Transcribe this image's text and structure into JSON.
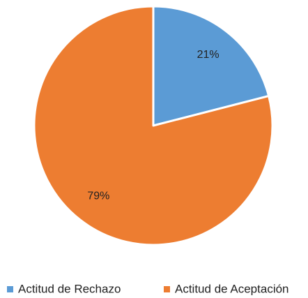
{
  "chart_data": {
    "type": "pie",
    "categories": [
      "Actitud de Rechazo",
      "Actitud de Aceptación"
    ],
    "values": [
      21,
      79
    ],
    "value_labels": [
      "21%",
      "79%"
    ],
    "colors": [
      "#5b9bd5",
      "#ed7d31"
    ],
    "legend": "bottom"
  }
}
